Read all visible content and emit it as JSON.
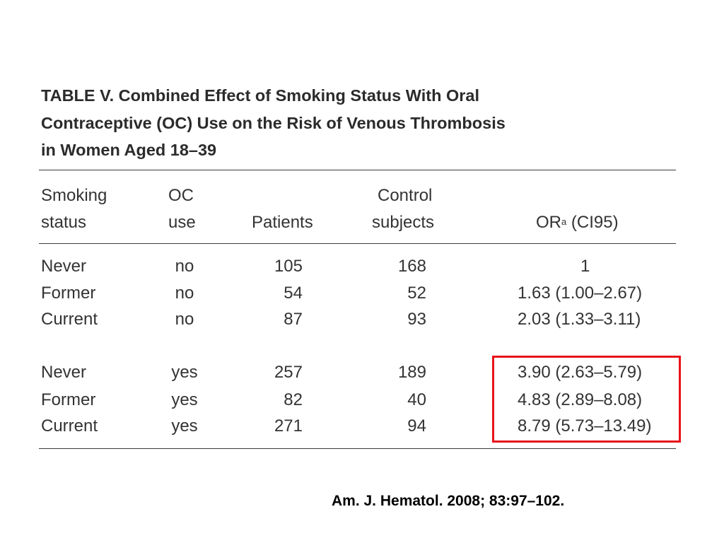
{
  "table": {
    "title_lines": [
      "TABLE V.  Combined Effect of Smoking Status With Oral",
      "Contraceptive (OC) Use on the Risk of Venous Thrombosis",
      "in Women Aged 18–39"
    ],
    "headers": {
      "smoking_line1": "Smoking",
      "smoking_line2": "status",
      "oc_line1": "OC",
      "oc_line2": "use",
      "patients": "Patients",
      "control_line1": "Control",
      "control_line2": "subjects",
      "or_prefix": "OR",
      "or_superscript": "a",
      "or_suffix": " (CI95)"
    },
    "rows": [
      {
        "smoking": "Never",
        "oc": "no",
        "patients": "105",
        "controls": "168",
        "or": "1"
      },
      {
        "smoking": "Former",
        "oc": "no",
        "patients": "54",
        "controls": "52",
        "or": "1.63 (1.00–2.67)"
      },
      {
        "smoking": "Current",
        "oc": "no",
        "patients": "87",
        "controls": "93",
        "or": "2.03 (1.33–3.11)"
      },
      {
        "smoking": "Never",
        "oc": "yes",
        "patients": "257",
        "controls": "189",
        "or": "3.90 (2.63–5.79)"
      },
      {
        "smoking": "Former",
        "oc": "yes",
        "patients": "82",
        "controls": "40",
        "or": "4.83 (2.89–8.08)"
      },
      {
        "smoking": "Current",
        "oc": "yes",
        "patients": "271",
        "controls": "94",
        "or": "8.79 (5.73–13.49)"
      }
    ]
  },
  "highlight_color": "#e8121b",
  "citation": "Am. J. Hematol. 2008; 83:97–102."
}
